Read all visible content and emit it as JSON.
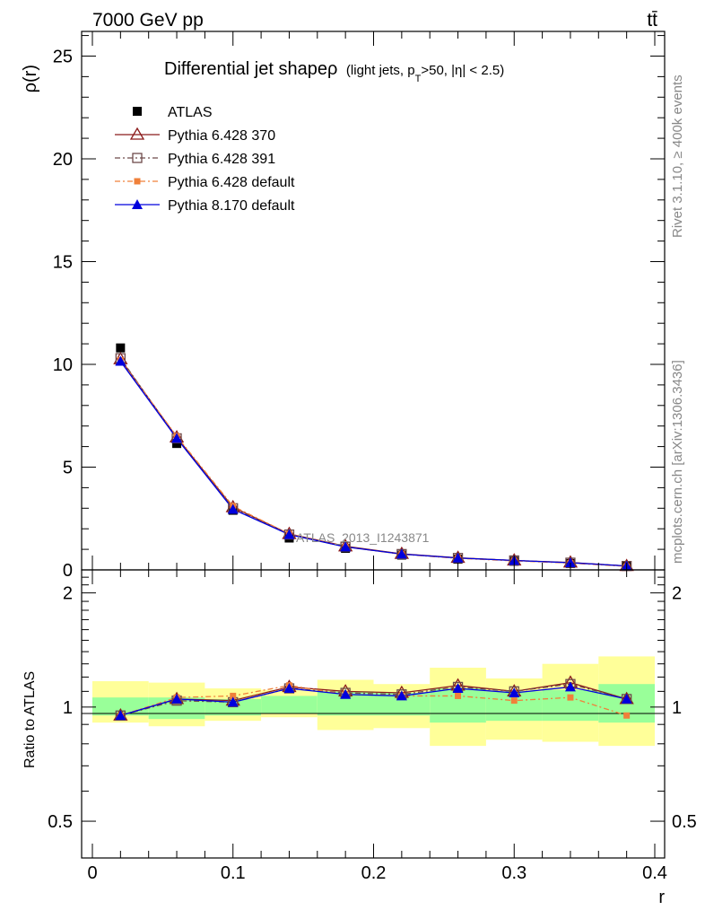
{
  "header": {
    "left": "7000 GeV pp",
    "right": "tt̄"
  },
  "side": {
    "rivet": "Rivet 3.1.10, ≥ 400k events",
    "mcplots": "mcplots.cern.ch [arXiv:1306.3436]"
  },
  "watermark": "ATLAS_2013_I1243871",
  "colors": {
    "atlas": "#000000",
    "p370": "#8b1a1a",
    "p391": "#6e4a4a",
    "p6def": "#f0803a",
    "p8def": "#0000dd",
    "band_inner": "#99ff99",
    "band_outer": "#ffff99"
  },
  "chart_data": [
    {
      "type": "line",
      "title_main": "Differential jet shapeρ",
      "title_sub": "(light jets, p",
      "title_sub_T": "T",
      "title_sub_rest": ">50, |η| < 2.5)",
      "ylabel": "ρ(r)",
      "xlabel": "",
      "xlim": [
        0,
        0.4
      ],
      "ylim": [
        0,
        26.2
      ],
      "yticks": [
        0,
        5,
        10,
        15,
        20,
        25
      ],
      "x": [
        0.02,
        0.06,
        0.1,
        0.14,
        0.18,
        0.22,
        0.26,
        0.3,
        0.34,
        0.38
      ],
      "series": [
        {
          "name": "ATLAS",
          "values": [
            10.8,
            6.15,
            2.9,
            1.55,
            1.05,
            0.72,
            0.52,
            0.42,
            0.31,
            0.18
          ]
        },
        {
          "name": "Pythia 6.428 370",
          "values": [
            10.25,
            6.45,
            3.05,
            1.75,
            1.15,
            0.78,
            0.59,
            0.46,
            0.36,
            0.19
          ]
        },
        {
          "name": "Pythia 6.428 391",
          "values": [
            10.3,
            6.4,
            3.0,
            1.72,
            1.13,
            0.77,
            0.58,
            0.46,
            0.35,
            0.19
          ]
        },
        {
          "name": "Pythia 6.428 default",
          "values": [
            10.2,
            6.5,
            3.1,
            1.75,
            1.12,
            0.76,
            0.56,
            0.44,
            0.33,
            0.17
          ]
        },
        {
          "name": "Pythia 8.170 default",
          "values": [
            10.15,
            6.4,
            2.95,
            1.72,
            1.12,
            0.77,
            0.58,
            0.46,
            0.35,
            0.19
          ]
        }
      ]
    },
    {
      "type": "line",
      "ylabel": "Ratio to ATLAS",
      "xlabel": "r",
      "xlim": [
        0,
        0.4
      ],
      "ylim": [
        0.4,
        2.3
      ],
      "log_y": true,
      "yticks": [
        0.5,
        1,
        2
      ],
      "xticks": [
        0,
        0.1,
        0.2,
        0.3,
        0.4
      ],
      "x": [
        0.02,
        0.06,
        0.1,
        0.14,
        0.18,
        0.22,
        0.26,
        0.3,
        0.34,
        0.38
      ],
      "bin_edges": [
        0,
        0.04,
        0.08,
        0.12,
        0.16,
        0.2,
        0.24,
        0.28,
        0.32,
        0.36,
        0.4
      ],
      "band_inner": [
        [
          0.95,
          1.06
        ],
        [
          0.93,
          1.06
        ],
        [
          0.95,
          1.05
        ],
        [
          0.96,
          1.07
        ],
        [
          0.95,
          1.1
        ],
        [
          0.95,
          1.09
        ],
        [
          0.91,
          1.12
        ],
        [
          0.92,
          1.1
        ],
        [
          0.92,
          1.11
        ],
        [
          0.91,
          1.15
        ]
      ],
      "band_outer": [
        [
          0.91,
          1.17
        ],
        [
          0.89,
          1.16
        ],
        [
          0.92,
          1.12
        ],
        [
          0.94,
          1.11
        ],
        [
          0.87,
          1.18
        ],
        [
          0.88,
          1.15
        ],
        [
          0.79,
          1.27
        ],
        [
          0.82,
          1.19
        ],
        [
          0.81,
          1.3
        ],
        [
          0.79,
          1.36
        ]
      ],
      "series": [
        {
          "name": "Pythia 6.428 370",
          "values": [
            0.95,
            1.05,
            1.04,
            1.13,
            1.1,
            1.09,
            1.14,
            1.1,
            1.16,
            1.05
          ]
        },
        {
          "name": "Pythia 6.428 391",
          "values": [
            0.95,
            1.04,
            1.03,
            1.12,
            1.09,
            1.08,
            1.13,
            1.1,
            1.15,
            1.05
          ]
        },
        {
          "name": "Pythia 6.428 default",
          "values": [
            0.95,
            1.06,
            1.07,
            1.14,
            1.08,
            1.07,
            1.07,
            1.04,
            1.06,
            0.95
          ]
        },
        {
          "name": "Pythia 8.170 default",
          "values": [
            0.95,
            1.05,
            1.03,
            1.12,
            1.08,
            1.07,
            1.12,
            1.09,
            1.13,
            1.05
          ]
        }
      ]
    }
  ]
}
